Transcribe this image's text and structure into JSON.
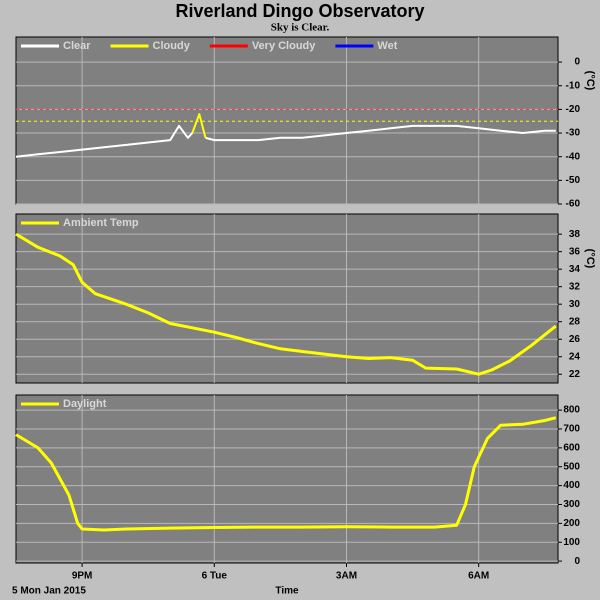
{
  "title": "Riverland Dingo Observatory",
  "subtitle": "Sky is Clear.",
  "footer_date": "5 Mon Jan 2015",
  "chart_data": [
    {
      "type": "line",
      "ylabel": "(°C)",
      "grid": true,
      "xlim": [
        19.5,
        31.8
      ],
      "xticks": [
        {
          "value": 21,
          "label": "9PM"
        },
        {
          "value": 24,
          "label": "6 Tue"
        },
        {
          "value": 27,
          "label": "3AM"
        },
        {
          "value": 30,
          "label": "6AM"
        }
      ],
      "ylim": [
        -60,
        10.6
      ],
      "yticks": [
        -60,
        -50,
        -40,
        -30,
        -20,
        -10,
        0
      ],
      "reference_lines": [
        {
          "value": -20,
          "color": "#ff3030"
        },
        {
          "value": -25,
          "color": "#ffff00"
        }
      ],
      "x": [
        19.5,
        20,
        20.5,
        21,
        21.5,
        22,
        22.5,
        23,
        23.2,
        23.4,
        23.5,
        23.66,
        23.8,
        24,
        24.5,
        25,
        25.5,
        26,
        26.5,
        27,
        27.5,
        28,
        28.5,
        29,
        29.5,
        30,
        30.5,
        31,
        31.5,
        31.75
      ],
      "series": [
        {
          "name": "Clear",
          "color": "#ffffff",
          "values": [
            -40,
            -39,
            -38,
            -37,
            -36,
            -35,
            -34,
            -33,
            -27,
            -32,
            -30,
            null,
            -32,
            -33,
            -33,
            -33,
            -32,
            -32,
            -31,
            -30,
            -29,
            -28,
            -27,
            -27,
            -27,
            -28,
            -29,
            -30,
            -29,
            -29
          ]
        },
        {
          "name": "Cloudy",
          "color": "#ffff00",
          "values": [
            null,
            null,
            null,
            null,
            null,
            null,
            null,
            null,
            null,
            null,
            -30,
            -22,
            -32,
            null,
            null,
            null,
            null,
            null,
            null,
            null,
            null,
            null,
            null,
            null,
            null,
            null,
            null,
            null,
            null,
            null
          ]
        },
        {
          "name": "Very Cloudy",
          "color": "#ff0000",
          "values": [
            null,
            null,
            null,
            null,
            null,
            null,
            null,
            null,
            null,
            null,
            null,
            null,
            null,
            null,
            null,
            null,
            null,
            null,
            null,
            null,
            null,
            null,
            null,
            null,
            null,
            null,
            null,
            null,
            null,
            null
          ]
        },
        {
          "name": "Wet",
          "color": "#0000ff",
          "values": [
            null,
            null,
            null,
            null,
            null,
            null,
            null,
            null,
            null,
            null,
            null,
            null,
            null,
            null,
            null,
            null,
            null,
            null,
            null,
            null,
            null,
            null,
            null,
            null,
            null,
            null,
            null,
            null,
            null,
            null
          ]
        }
      ]
    },
    {
      "type": "line",
      "ylabel": "(°C)",
      "grid": true,
      "xlim": [
        19.5,
        31.8
      ],
      "xticks": [
        {
          "value": 21,
          "label": "9PM"
        },
        {
          "value": 24,
          "label": "6 Tue"
        },
        {
          "value": 27,
          "label": "3AM"
        },
        {
          "value": 30,
          "label": "6AM"
        }
      ],
      "ylim": [
        21,
        40.3
      ],
      "yticks": [
        22,
        24,
        26,
        28,
        30,
        32,
        34,
        36,
        38
      ],
      "x": [
        19.5,
        20,
        20.5,
        20.8,
        21,
        21.3,
        22,
        22.5,
        23,
        23.5,
        24,
        24.5,
        25,
        25.5,
        26,
        26.5,
        27,
        27.5,
        28,
        28.5,
        28.8,
        29.5,
        30,
        30.3,
        30.7,
        31.2,
        31.75
      ],
      "series": [
        {
          "name": "Ambient Temp",
          "color": "#ffff00",
          "values": [
            38,
            36.5,
            35.5,
            34.5,
            32.5,
            31.2,
            30,
            29,
            27.8,
            27.3,
            26.8,
            26.2,
            25.5,
            24.9,
            24.6,
            24.3,
            24,
            23.8,
            23.9,
            23.6,
            22.7,
            22.6,
            22,
            22.5,
            23.5,
            25.3,
            27.5
          ]
        }
      ]
    },
    {
      "type": "line",
      "xlabel": "Time",
      "grid": true,
      "xlim": [
        19.5,
        31.8
      ],
      "xticks": [
        {
          "value": 21,
          "label": "9PM"
        },
        {
          "value": 24,
          "label": "6 Tue"
        },
        {
          "value": 27,
          "label": "3AM"
        },
        {
          "value": 30,
          "label": "6AM"
        }
      ],
      "ylim": [
        -10,
        880
      ],
      "yticks": [
        0,
        100,
        200,
        300,
        400,
        500,
        600,
        700,
        800
      ],
      "x": [
        19.5,
        20,
        20.3,
        20.7,
        20.9,
        21,
        21.5,
        22,
        23,
        24,
        25,
        26,
        27,
        28,
        29,
        29.5,
        29.7,
        29.9,
        30.2,
        30.5,
        31,
        31.5,
        31.75
      ],
      "series": [
        {
          "name": "Daylight",
          "color": "#ffff00",
          "values": [
            670,
            600,
            520,
            350,
            200,
            170,
            165,
            170,
            175,
            178,
            180,
            180,
            182,
            180,
            180,
            190,
            300,
            500,
            650,
            720,
            725,
            745,
            760
          ]
        }
      ]
    }
  ]
}
